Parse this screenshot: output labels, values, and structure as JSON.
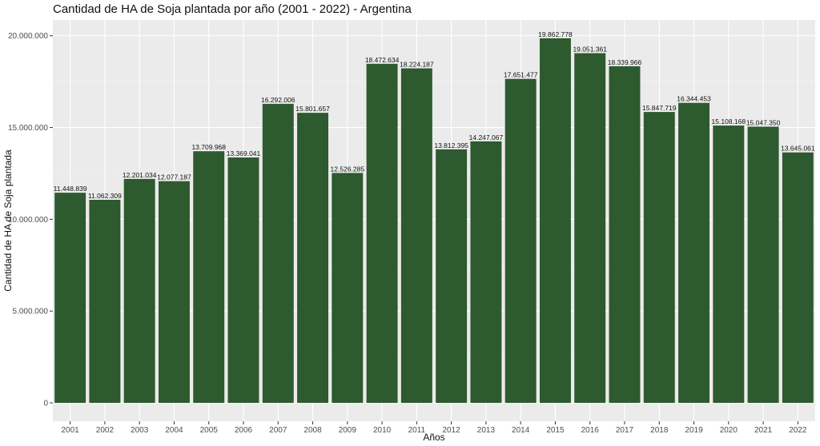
{
  "chart_data": {
    "type": "bar",
    "title": "Cantidad de HA de Soja plantada por año (2001 - 2022) - Argentina",
    "xlabel": "Años",
    "ylabel": "Cantidad de HA de Soja plantada",
    "categories": [
      "2001",
      "2002",
      "2003",
      "2004",
      "2005",
      "2006",
      "2007",
      "2008",
      "2009",
      "2010",
      "2011",
      "2012",
      "2013",
      "2014",
      "2015",
      "2016",
      "2017",
      "2018",
      "2019",
      "2020",
      "2021",
      "2022"
    ],
    "values": [
      11448839,
      11062309,
      12201034,
      12077187,
      13709968,
      13369041,
      16292006,
      15801657,
      12526285,
      18472634,
      18224187,
      13812395,
      14247067,
      17651477,
      19862778,
      19051361,
      18339966,
      15847719,
      16344453,
      15108168,
      15047350,
      13645061
    ],
    "value_labels": [
      "11.448.839",
      "11.062.309",
      "12.201.034",
      "12.077.187",
      "13.709.968",
      "13.369.041",
      "16.292.006",
      "15.801.657",
      "12.526.285",
      "18.472.634",
      "18.224.187",
      "13.812.395",
      "14.247.067",
      "17.651.477",
      "19.862.778",
      "19.051.361",
      "18.339.966",
      "15.847.719",
      "16.344.453",
      "15.108.168",
      "15.047.350",
      "13.645.061"
    ],
    "yticks": [
      0,
      5000000,
      10000000,
      15000000,
      20000000
    ],
    "ytick_labels": [
      "0",
      "5.000.000",
      "10.000.000",
      "15.000.000",
      "20.000.000"
    ],
    "ylim": [
      -1000000,
      20860000
    ],
    "grid": true,
    "legend": "none",
    "colors": {
      "bar": "#2d5a2e",
      "panel_background": "#ebebeb",
      "grid_major": "#ffffff",
      "grid_minor": "#f5f5f5"
    }
  }
}
